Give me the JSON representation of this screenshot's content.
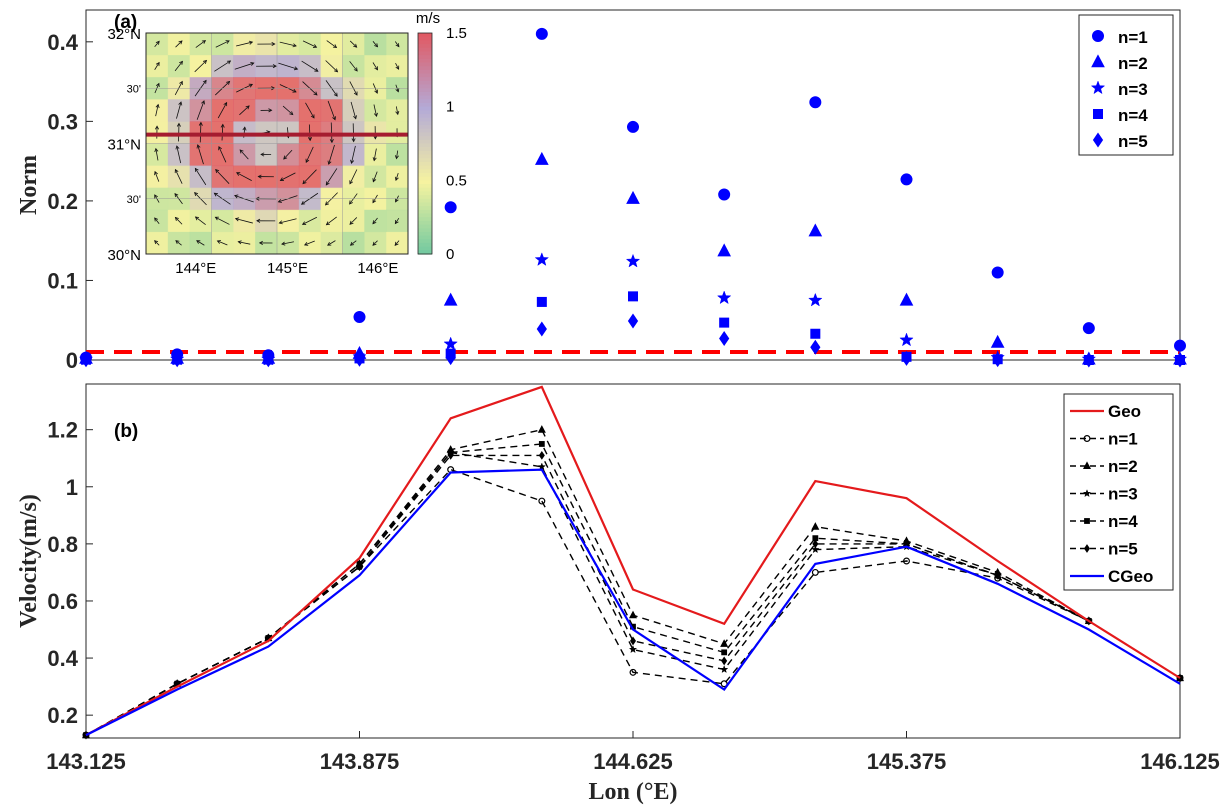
{
  "chart_data": [
    {
      "panel": "(a)",
      "type": "scatter",
      "ylabel": "Norm",
      "ylim": [
        0,
        0.44
      ],
      "yticks": [
        "0",
        "0.1",
        "0.2",
        "0.3",
        "0.4"
      ],
      "x": [
        143.125,
        143.25,
        143.375,
        143.5,
        143.625,
        143.75,
        143.875,
        144.0,
        144.125,
        144.25,
        144.375,
        144.5,
        144.625,
        144.75,
        144.875,
        145.0,
        145.125,
        145.25,
        145.375,
        145.5,
        145.625,
        145.75,
        145.875,
        146.0,
        146.125
      ],
      "xlim": [
        143.125,
        146.125
      ],
      "threshold": 0.01,
      "threshold_color": "#ff0000",
      "marker_color": "#0000ff",
      "series": [
        {
          "name": "n=1",
          "marker": "circle",
          "x": [
            143.125,
            143.375,
            143.625,
            143.875,
            144.125,
            144.375,
            144.625,
            144.875,
            145.125,
            145.375,
            145.625,
            145.875,
            146.125
          ],
          "values": [
            0.003,
            0.007,
            0.006,
            0.054,
            0.192,
            0.41,
            0.293,
            0.208,
            0.324,
            0.227,
            0.11,
            0.04,
            0.018
          ]
        },
        {
          "name": "n=2",
          "marker": "triangle",
          "x": [
            143.125,
            143.375,
            143.625,
            143.875,
            144.125,
            144.375,
            144.625,
            144.875,
            145.125,
            145.375,
            145.625,
            145.875,
            146.125
          ],
          "values": [
            0.002,
            0.002,
            0.002,
            0.008,
            0.075,
            0.252,
            0.203,
            0.137,
            0.162,
            0.075,
            0.022,
            0.001,
            0.001
          ]
        },
        {
          "name": "n=3",
          "marker": "star",
          "x": [
            143.125,
            143.375,
            143.625,
            143.875,
            144.125,
            144.375,
            144.625,
            144.875,
            145.125,
            145.375,
            145.625,
            145.875,
            146.125
          ],
          "values": [
            0.001,
            0.001,
            0.001,
            0.004,
            0.02,
            0.126,
            0.124,
            0.078,
            0.075,
            0.025,
            0.003,
            0.001,
            0.001
          ]
        },
        {
          "name": "n=4",
          "marker": "square",
          "x": [
            143.125,
            143.375,
            143.625,
            143.875,
            144.125,
            144.375,
            144.625,
            144.875,
            145.125,
            145.375,
            145.625,
            145.875,
            146.125
          ],
          "values": [
            0.0005,
            0.0005,
            0.0005,
            0.002,
            0.008,
            0.073,
            0.08,
            0.047,
            0.033,
            0.004,
            0.001,
            0.0,
            0.0
          ]
        },
        {
          "name": "n=5",
          "marker": "diamond",
          "x": [
            143.125,
            143.375,
            143.625,
            143.875,
            144.125,
            144.375,
            144.625,
            144.875,
            145.125,
            145.375,
            145.625,
            145.875,
            146.125
          ],
          "values": [
            0.0003,
            0.0003,
            0.0003,
            0.001,
            0.003,
            0.039,
            0.049,
            0.027,
            0.016,
            0.002,
            0.0005,
            0.0,
            0.0
          ]
        }
      ],
      "legend": "top-right",
      "inset": {
        "colorbar_unit": "m/s",
        "colorbar_ticks": [
          "1.5",
          "1",
          "0.5",
          "0"
        ],
        "lat_labels": [
          "32°N",
          "30'",
          "31°N",
          "30'",
          "30°N"
        ],
        "lon_labels": [
          "144°E",
          "145°E",
          "146°E"
        ]
      }
    },
    {
      "panel": "(b)",
      "type": "line",
      "xlabel": "Lon (°E)",
      "ylabel": "Velocity(m/s)",
      "xlim": [
        143.125,
        146.125
      ],
      "ylim": [
        0.12,
        1.36
      ],
      "xticks": [
        "143.125",
        "143.875",
        "144.625",
        "145.375",
        "146.125"
      ],
      "yticks": [
        "0.2",
        "0.4",
        "0.6",
        "0.8",
        "1",
        "1.2"
      ],
      "x": [
        143.125,
        143.375,
        143.625,
        143.875,
        144.125,
        144.375,
        144.625,
        144.875,
        145.125,
        145.375,
        145.625,
        145.875,
        146.125
      ],
      "series": [
        {
          "name": "Geo",
          "color": "#e41a1c",
          "style": "solid",
          "values": [
            0.13,
            0.3,
            0.46,
            0.75,
            1.24,
            1.35,
            0.64,
            0.52,
            1.02,
            0.96,
            0.74,
            0.53,
            0.33
          ]
        },
        {
          "name": "n=1",
          "color": "#000000",
          "style": "dashed",
          "marker": "circle",
          "values": [
            0.13,
            0.31,
            0.47,
            0.72,
            1.06,
            0.95,
            0.35,
            0.31,
            0.7,
            0.74,
            0.68,
            0.53,
            0.33
          ]
        },
        {
          "name": "n=2",
          "color": "#000000",
          "style": "dashed",
          "marker": "triangle",
          "values": [
            0.13,
            0.31,
            0.47,
            0.73,
            1.13,
            1.2,
            0.55,
            0.45,
            0.86,
            0.81,
            0.7,
            0.53,
            0.33
          ]
        },
        {
          "name": "n=3",
          "color": "#000000",
          "style": "dashed",
          "marker": "star",
          "values": [
            0.13,
            0.31,
            0.47,
            0.72,
            1.12,
            1.07,
            0.43,
            0.36,
            0.78,
            0.79,
            0.69,
            0.53,
            0.33
          ]
        },
        {
          "name": "n=4",
          "color": "#000000",
          "style": "dashed",
          "marker": "square",
          "values": [
            0.13,
            0.31,
            0.47,
            0.73,
            1.12,
            1.15,
            0.51,
            0.42,
            0.82,
            0.8,
            0.69,
            0.53,
            0.33
          ]
        },
        {
          "name": "n=5",
          "color": "#000000",
          "style": "dashed",
          "marker": "diamond",
          "values": [
            0.13,
            0.31,
            0.47,
            0.72,
            1.11,
            1.11,
            0.46,
            0.39,
            0.8,
            0.8,
            0.69,
            0.53,
            0.33
          ]
        },
        {
          "name": "CGeo",
          "color": "#0000ff",
          "style": "solid",
          "values": [
            0.13,
            0.29,
            0.44,
            0.69,
            1.05,
            1.06,
            0.5,
            0.29,
            0.73,
            0.79,
            0.66,
            0.5,
            0.31
          ]
        }
      ],
      "legend": "top-right",
      "grid": false
    }
  ]
}
